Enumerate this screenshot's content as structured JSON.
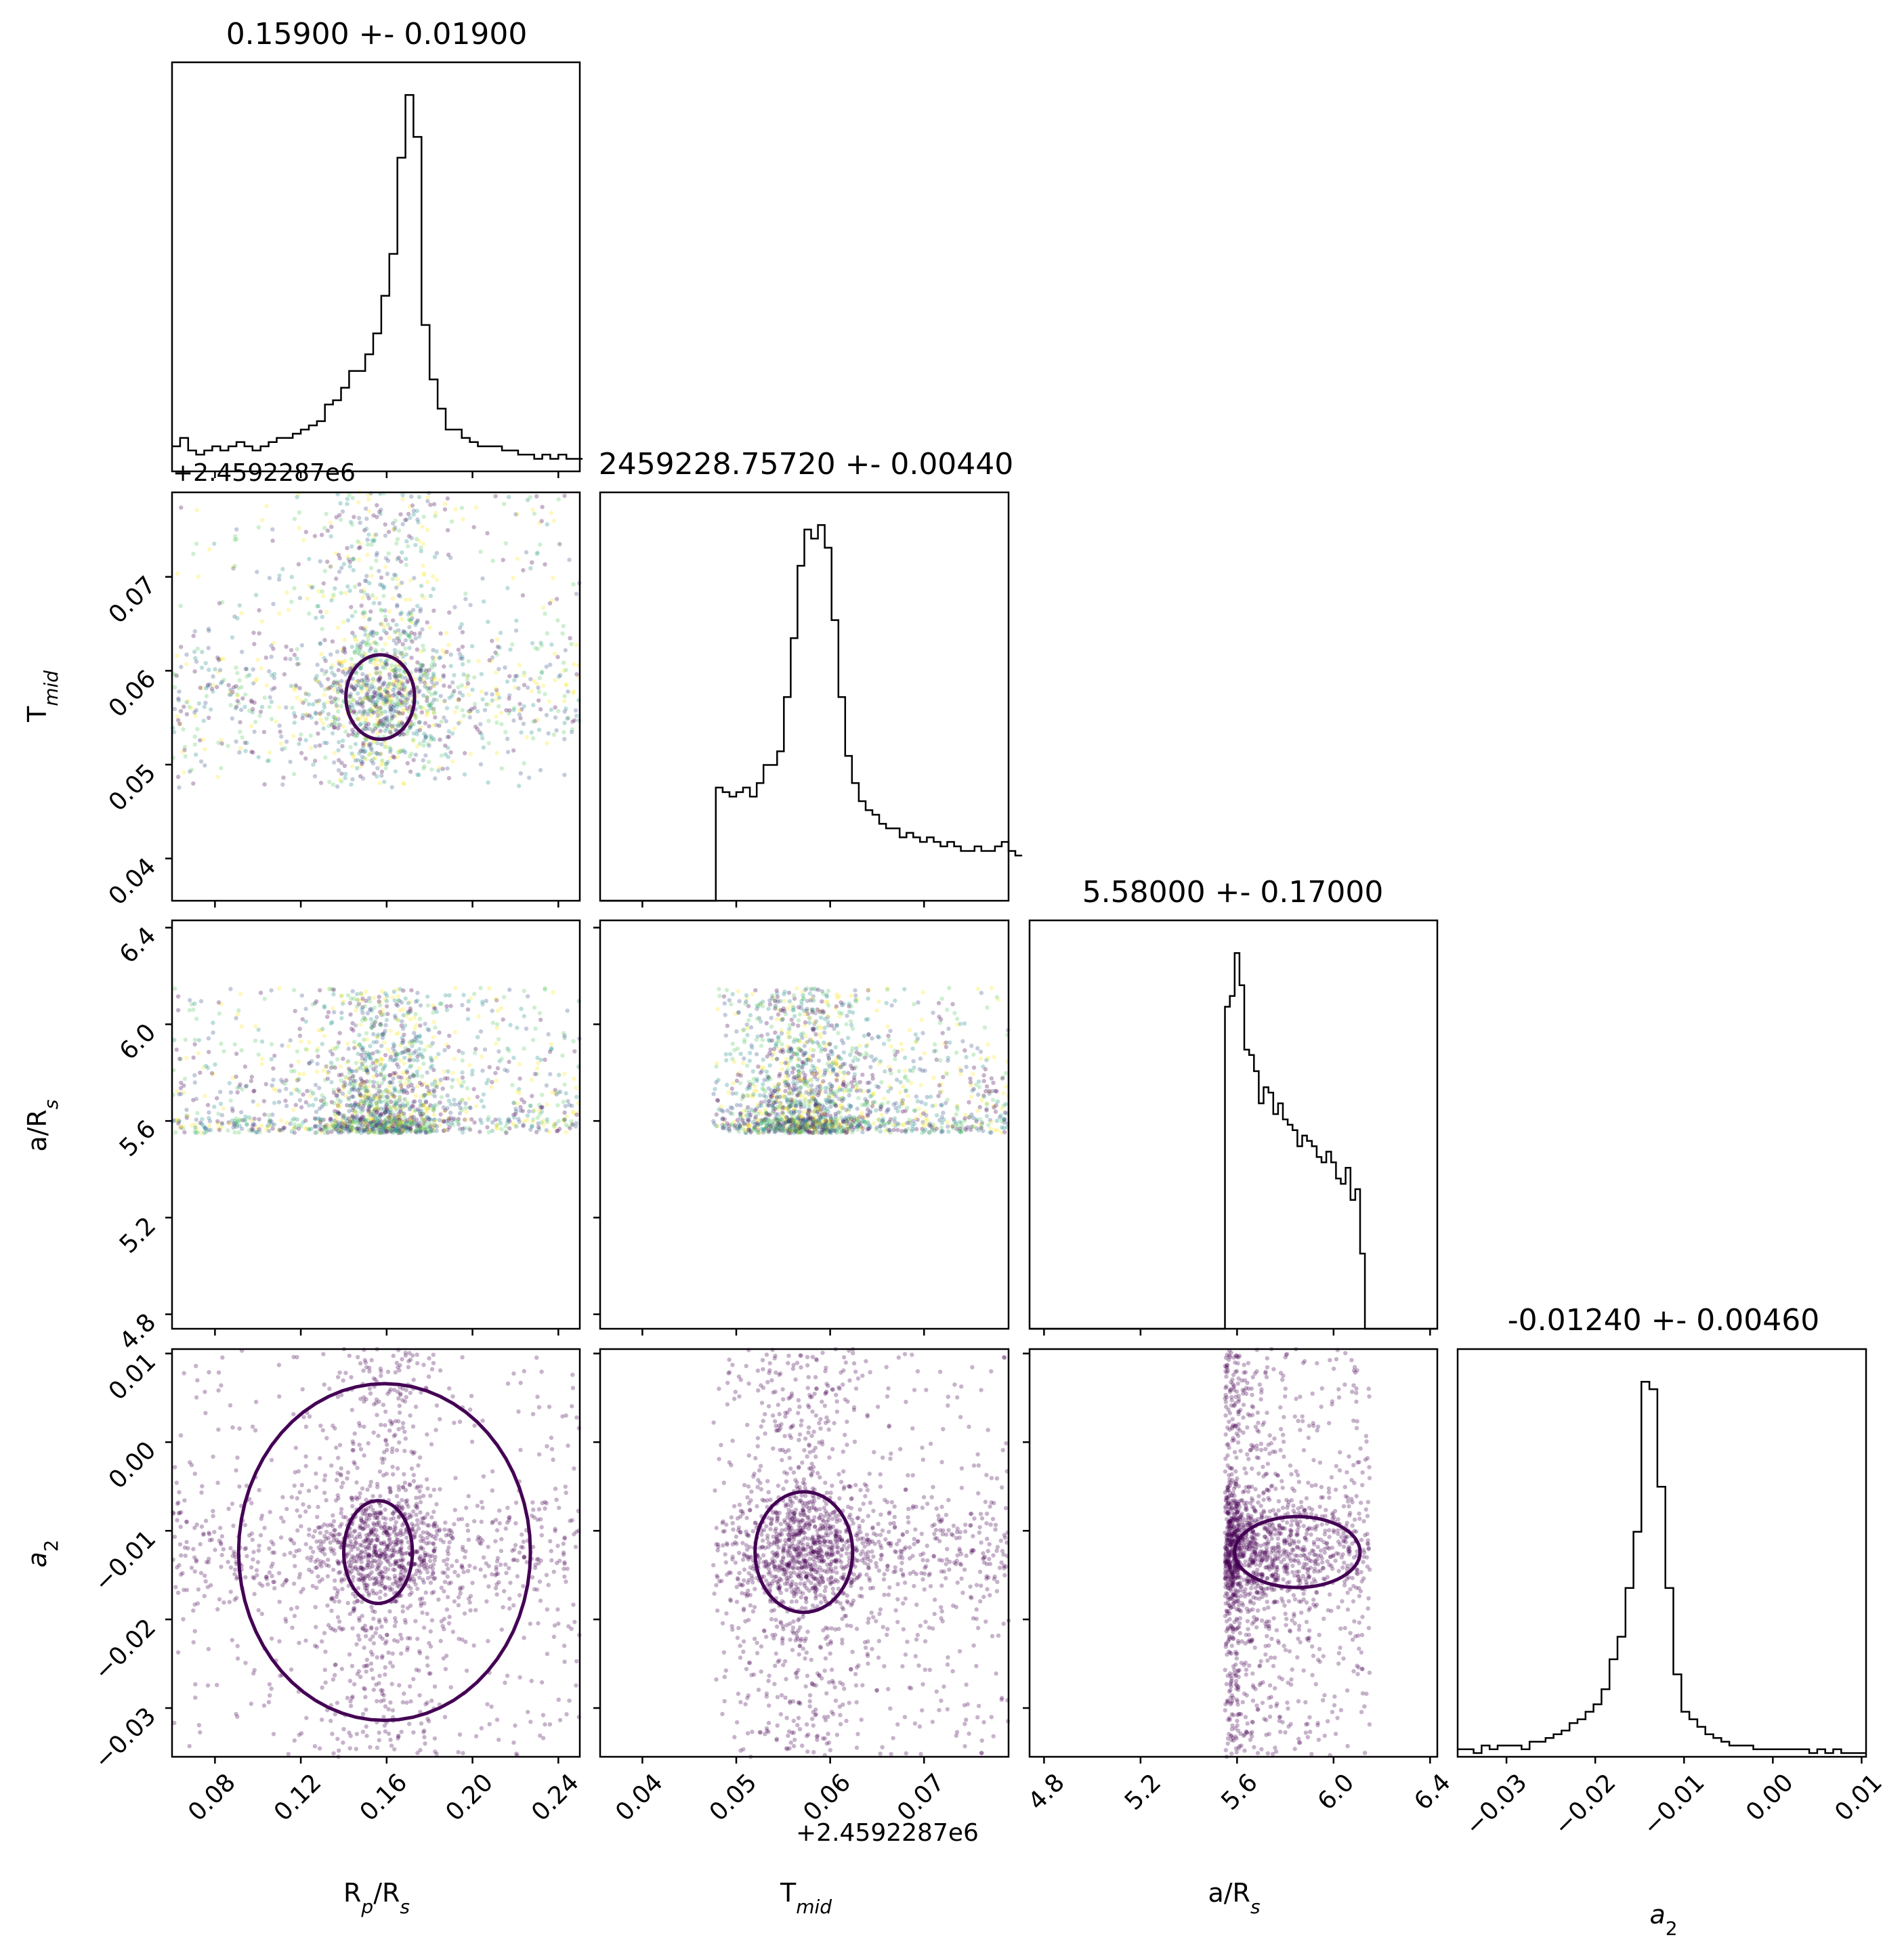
{
  "chart_data": {
    "type": "scatter",
    "subtype": "corner-plot",
    "params": [
      {
        "key": "rp",
        "label": "R_p/R_s",
        "range": [
          0.06,
          0.25
        ],
        "ticks": [
          "0.08",
          "0.12",
          "0.16",
          "0.20",
          "0.24"
        ],
        "tick_values": [
          0.08,
          0.12,
          0.16,
          0.2,
          0.24
        ]
      },
      {
        "key": "tmid",
        "label": "T_mid",
        "range": [
          0.0355,
          0.079
        ],
        "ticks": [
          "0.04",
          "0.05",
          "0.06",
          "0.07"
        ],
        "tick_values": [
          0.04,
          0.05,
          0.06,
          0.07
        ],
        "offset": "+2.4592287e6"
      },
      {
        "key": "ars",
        "label": "a/R_s",
        "range": [
          4.74,
          6.43
        ],
        "ticks": [
          "4.8",
          "5.2",
          "5.6",
          "6.0",
          "6.4"
        ],
        "tick_values": [
          4.8,
          5.2,
          5.6,
          6.0,
          6.4
        ]
      },
      {
        "key": "a2",
        "label": "a_2",
        "range": [
          -0.0355,
          0.0105
        ],
        "ticks": [
          "−0.03",
          "−0.02",
          "−0.01",
          "0.00",
          "0.01"
        ],
        "tick_values": [
          -0.03,
          -0.02,
          -0.01,
          0.0,
          0.01
        ]
      }
    ],
    "titles": [
      "0.15900 +- 0.01900",
      "2459228.75720 +- 0.00440",
      "5.58000 +- 0.17000",
      "-0.01240 +- 0.00460"
    ],
    "posteriors": {
      "rp": {
        "center": 0.159,
        "sigma": 0.019
      },
      "tmid": {
        "center": 0.0572,
        "sigma": 0.0044,
        "samples_min": 0.0475
      },
      "ars": {
        "center": 5.58,
        "sigma": 0.17,
        "samples_min": 5.55,
        "samples_max": 6.15
      },
      "a2": {
        "center": -0.0124,
        "sigma": 0.0046
      }
    },
    "histograms": {
      "rp": {
        "edges_start": 0.06,
        "bin_width": 0.00375,
        "counts": [
          6,
          8,
          5,
          4,
          5,
          6,
          5,
          6,
          7,
          6,
          5,
          6,
          7,
          8,
          8,
          9,
          10,
          11,
          12,
          16,
          17,
          20,
          24,
          24,
          28,
          33,
          42,
          52,
          75,
          90,
          80,
          35,
          22,
          15,
          10,
          10,
          8,
          7,
          6,
          6,
          6,
          5,
          5,
          4,
          4,
          3,
          4,
          3,
          4,
          3,
          3
        ]
      },
      "tmid": {
        "edges_start": 0.0355,
        "bin_width": 0.000725,
        "counts": [
          0,
          0,
          0,
          0,
          0,
          0,
          0,
          0,
          0,
          0,
          0,
          0,
          0,
          0,
          0,
          0,
          0,
          25,
          24,
          23,
          24,
          25,
          23,
          26,
          30,
          30,
          33,
          45,
          58,
          74,
          82,
          80,
          83,
          78,
          62,
          45,
          32,
          26,
          22,
          20,
          19,
          17,
          16,
          16,
          14,
          15,
          14,
          13,
          14,
          13,
          12,
          13,
          12,
          11,
          11,
          12,
          11,
          11,
          12,
          13,
          11,
          10
        ]
      },
      "ars": {
        "edges_start": 4.74,
        "bin_width": 0.028,
        "counts": [
          0,
          0,
          0,
          0,
          0,
          0,
          0,
          0,
          0,
          0,
          0,
          0,
          0,
          0,
          0,
          0,
          0,
          0,
          0,
          0,
          0,
          0,
          0,
          0,
          0,
          0,
          0,
          0,
          0,
          0,
          0,
          0,
          0,
          0,
          0,
          0,
          0,
          0,
          0,
          0,
          0,
          0,
          0,
          0,
          0,
          0,
          0,
          0,
          0,
          0,
          0,
          0,
          0,
          0,
          0,
          0,
          0,
          0
        ]
      },
      "a2": {
        "edges_start": -0.0355,
        "bin_width": 0.0009,
        "counts": [
          2,
          2,
          1,
          3,
          2,
          3,
          3,
          3,
          2,
          4,
          4,
          5,
          6,
          7,
          9,
          10,
          12,
          14,
          18,
          26,
          32,
          45,
          60,
          100,
          98,
          72,
          45,
          22,
          12,
          10,
          8,
          6,
          5,
          4,
          3,
          3,
          3,
          2,
          2,
          2,
          2,
          2,
          2,
          2,
          1,
          2,
          1,
          2,
          1,
          1,
          1
        ]
      }
    },
    "ars_hist_shape": [
      [
        5.55,
        60
      ],
      [
        5.57,
        62
      ],
      [
        5.59,
        70
      ],
      [
        5.61,
        64
      ],
      [
        5.63,
        52
      ],
      [
        5.65,
        51
      ],
      [
        5.67,
        48
      ],
      [
        5.69,
        42
      ],
      [
        5.71,
        45
      ],
      [
        5.73,
        44
      ],
      [
        5.75,
        40
      ],
      [
        5.77,
        42
      ],
      [
        5.79,
        39
      ],
      [
        5.81,
        38
      ],
      [
        5.83,
        37
      ],
      [
        5.85,
        34
      ],
      [
        5.87,
        36
      ],
      [
        5.89,
        35
      ],
      [
        5.91,
        34
      ],
      [
        5.93,
        32
      ],
      [
        5.95,
        31
      ],
      [
        5.97,
        33
      ],
      [
        5.99,
        31
      ],
      [
        6.01,
        28
      ],
      [
        6.03,
        27
      ],
      [
        6.05,
        30
      ],
      [
        6.07,
        24
      ],
      [
        6.09,
        26
      ],
      [
        6.11,
        14
      ],
      [
        6.13,
        0
      ]
    ],
    "grid": false,
    "cmap": [
      "#440154",
      "#3b528b",
      "#21918c",
      "#5ec962",
      "#fde725"
    ],
    "contour_color": "#440154"
  }
}
